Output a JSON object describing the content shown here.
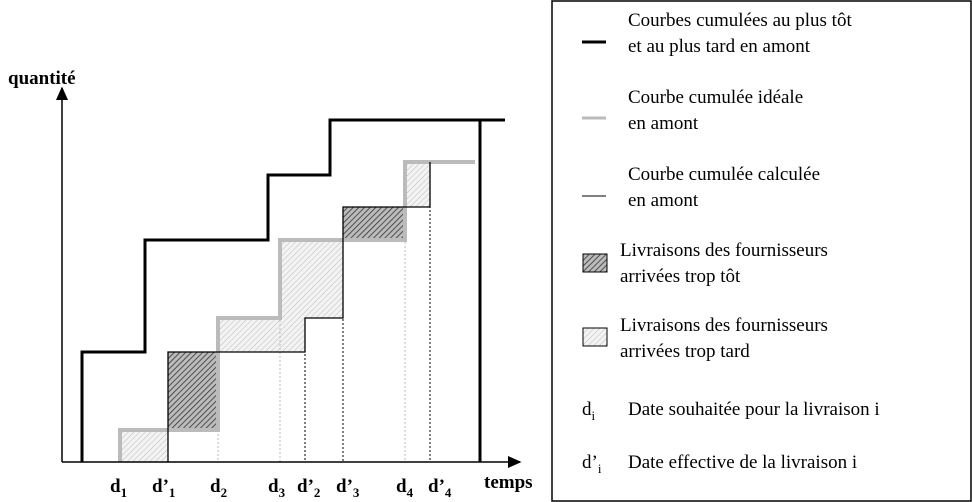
{
  "diagram": {
    "y_axis_label": "quantité",
    "x_axis_label": "temps",
    "x_labels": [
      {
        "base": "d",
        "sub": "1"
      },
      {
        "base": "d’",
        "sub": "1"
      },
      {
        "base": "d",
        "sub": "2"
      },
      {
        "base": "d",
        "sub": "3"
      },
      {
        "base": "d’",
        "sub": "2"
      },
      {
        "base": "d’",
        "sub": "3"
      },
      {
        "base": "d",
        "sub": "4"
      },
      {
        "base": "d’",
        "sub": "4"
      }
    ],
    "legend": [
      {
        "lines": [
          "Courbes cumulées au plus tôt",
          "et au plus tard en amont"
        ]
      },
      {
        "lines": [
          "Courbe cumulée idéale",
          "en amont"
        ]
      },
      {
        "lines": [
          "Courbe cumulée calculée",
          "en amont"
        ]
      },
      {
        "lines": [
          "Livraisons des fournisseurs",
          "arrivées trop tôt"
        ]
      },
      {
        "lines": [
          "Livraisons des fournisseurs",
          "arrivées trop tard"
        ]
      },
      {
        "symbol": {
          "base": "d",
          "sub": "i"
        },
        "lines": [
          "Date souhaitée pour la livraison i"
        ]
      },
      {
        "symbol": {
          "base": "d’",
          "sub": "i"
        },
        "lines": [
          "Date effective de la livraison i"
        ]
      }
    ]
  }
}
